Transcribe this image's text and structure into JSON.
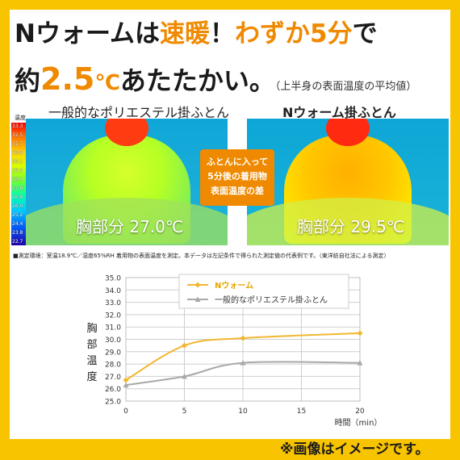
{
  "headline": {
    "line1_a": "Nウォームは",
    "line1_b": "速暖",
    "line1_c": "！",
    "line1_d": "わずか5分",
    "line1_e": "で",
    "line2_a": "約",
    "line2_num": "2.5",
    "line2_unit": "℃",
    "line2_b": "あたたかい。",
    "line2_note": "（上半身の表面温度の平均値）"
  },
  "captions": {
    "left": "一般的なポリエステル掛ふとん",
    "right": "Nウォーム掛ふとん"
  },
  "scale": {
    "label": "温度",
    "ticks": [
      "33.3",
      "32.5",
      "31.7",
      "30.9",
      "30.1",
      "29.3",
      "28.4",
      "27.6",
      "26.8",
      "26.0",
      "25.2",
      "24.4",
      "23.8",
      "22.7"
    ]
  },
  "thermo": {
    "left_readout": "胸部分  27.0℃",
    "right_readout": "胸部分  29.5℃"
  },
  "callout": {
    "line1": "ふとんに入って",
    "line2": "5分後の着用物",
    "line3": "表面温度の差"
  },
  "note": "■測定環境：室温18.9℃／湿度65%RH 着用物の表面温度を測定。本データは左記条件で得られた測定値の代表例です。（東洋紡自社法による測定）",
  "ylabel": {
    "c1": "胸",
    "c2": "部",
    "c3": "温",
    "c4": "度"
  },
  "disclaimer": "※画像はイメージです。",
  "colors": {
    "frame": "#f8c400",
    "accent": "#ef8a00",
    "series_warm": "#f2b731",
    "series_poly": "#a9a9a9"
  },
  "chart_data": {
    "type": "line",
    "x": [
      0,
      5,
      10,
      20
    ],
    "series": [
      {
        "name": "Nウォーム",
        "values": [
          26.7,
          29.5,
          30.1,
          30.5
        ]
      },
      {
        "name": "一般的なポリエステル掛ふとん",
        "values": [
          26.3,
          27.0,
          28.1,
          28.1
        ]
      }
    ],
    "xticks": [
      0,
      5,
      10,
      15,
      20
    ],
    "yticks": [
      25.0,
      26.0,
      27.0,
      28.0,
      29.0,
      30.0,
      31.0,
      32.0,
      33.0,
      34.0,
      35.0
    ],
    "xlim": [
      0,
      20
    ],
    "ylim": [
      25.0,
      35.0
    ],
    "xlabel": "時間（min）",
    "ylabel": "胸部温度",
    "grid": true,
    "legend": "top"
  }
}
